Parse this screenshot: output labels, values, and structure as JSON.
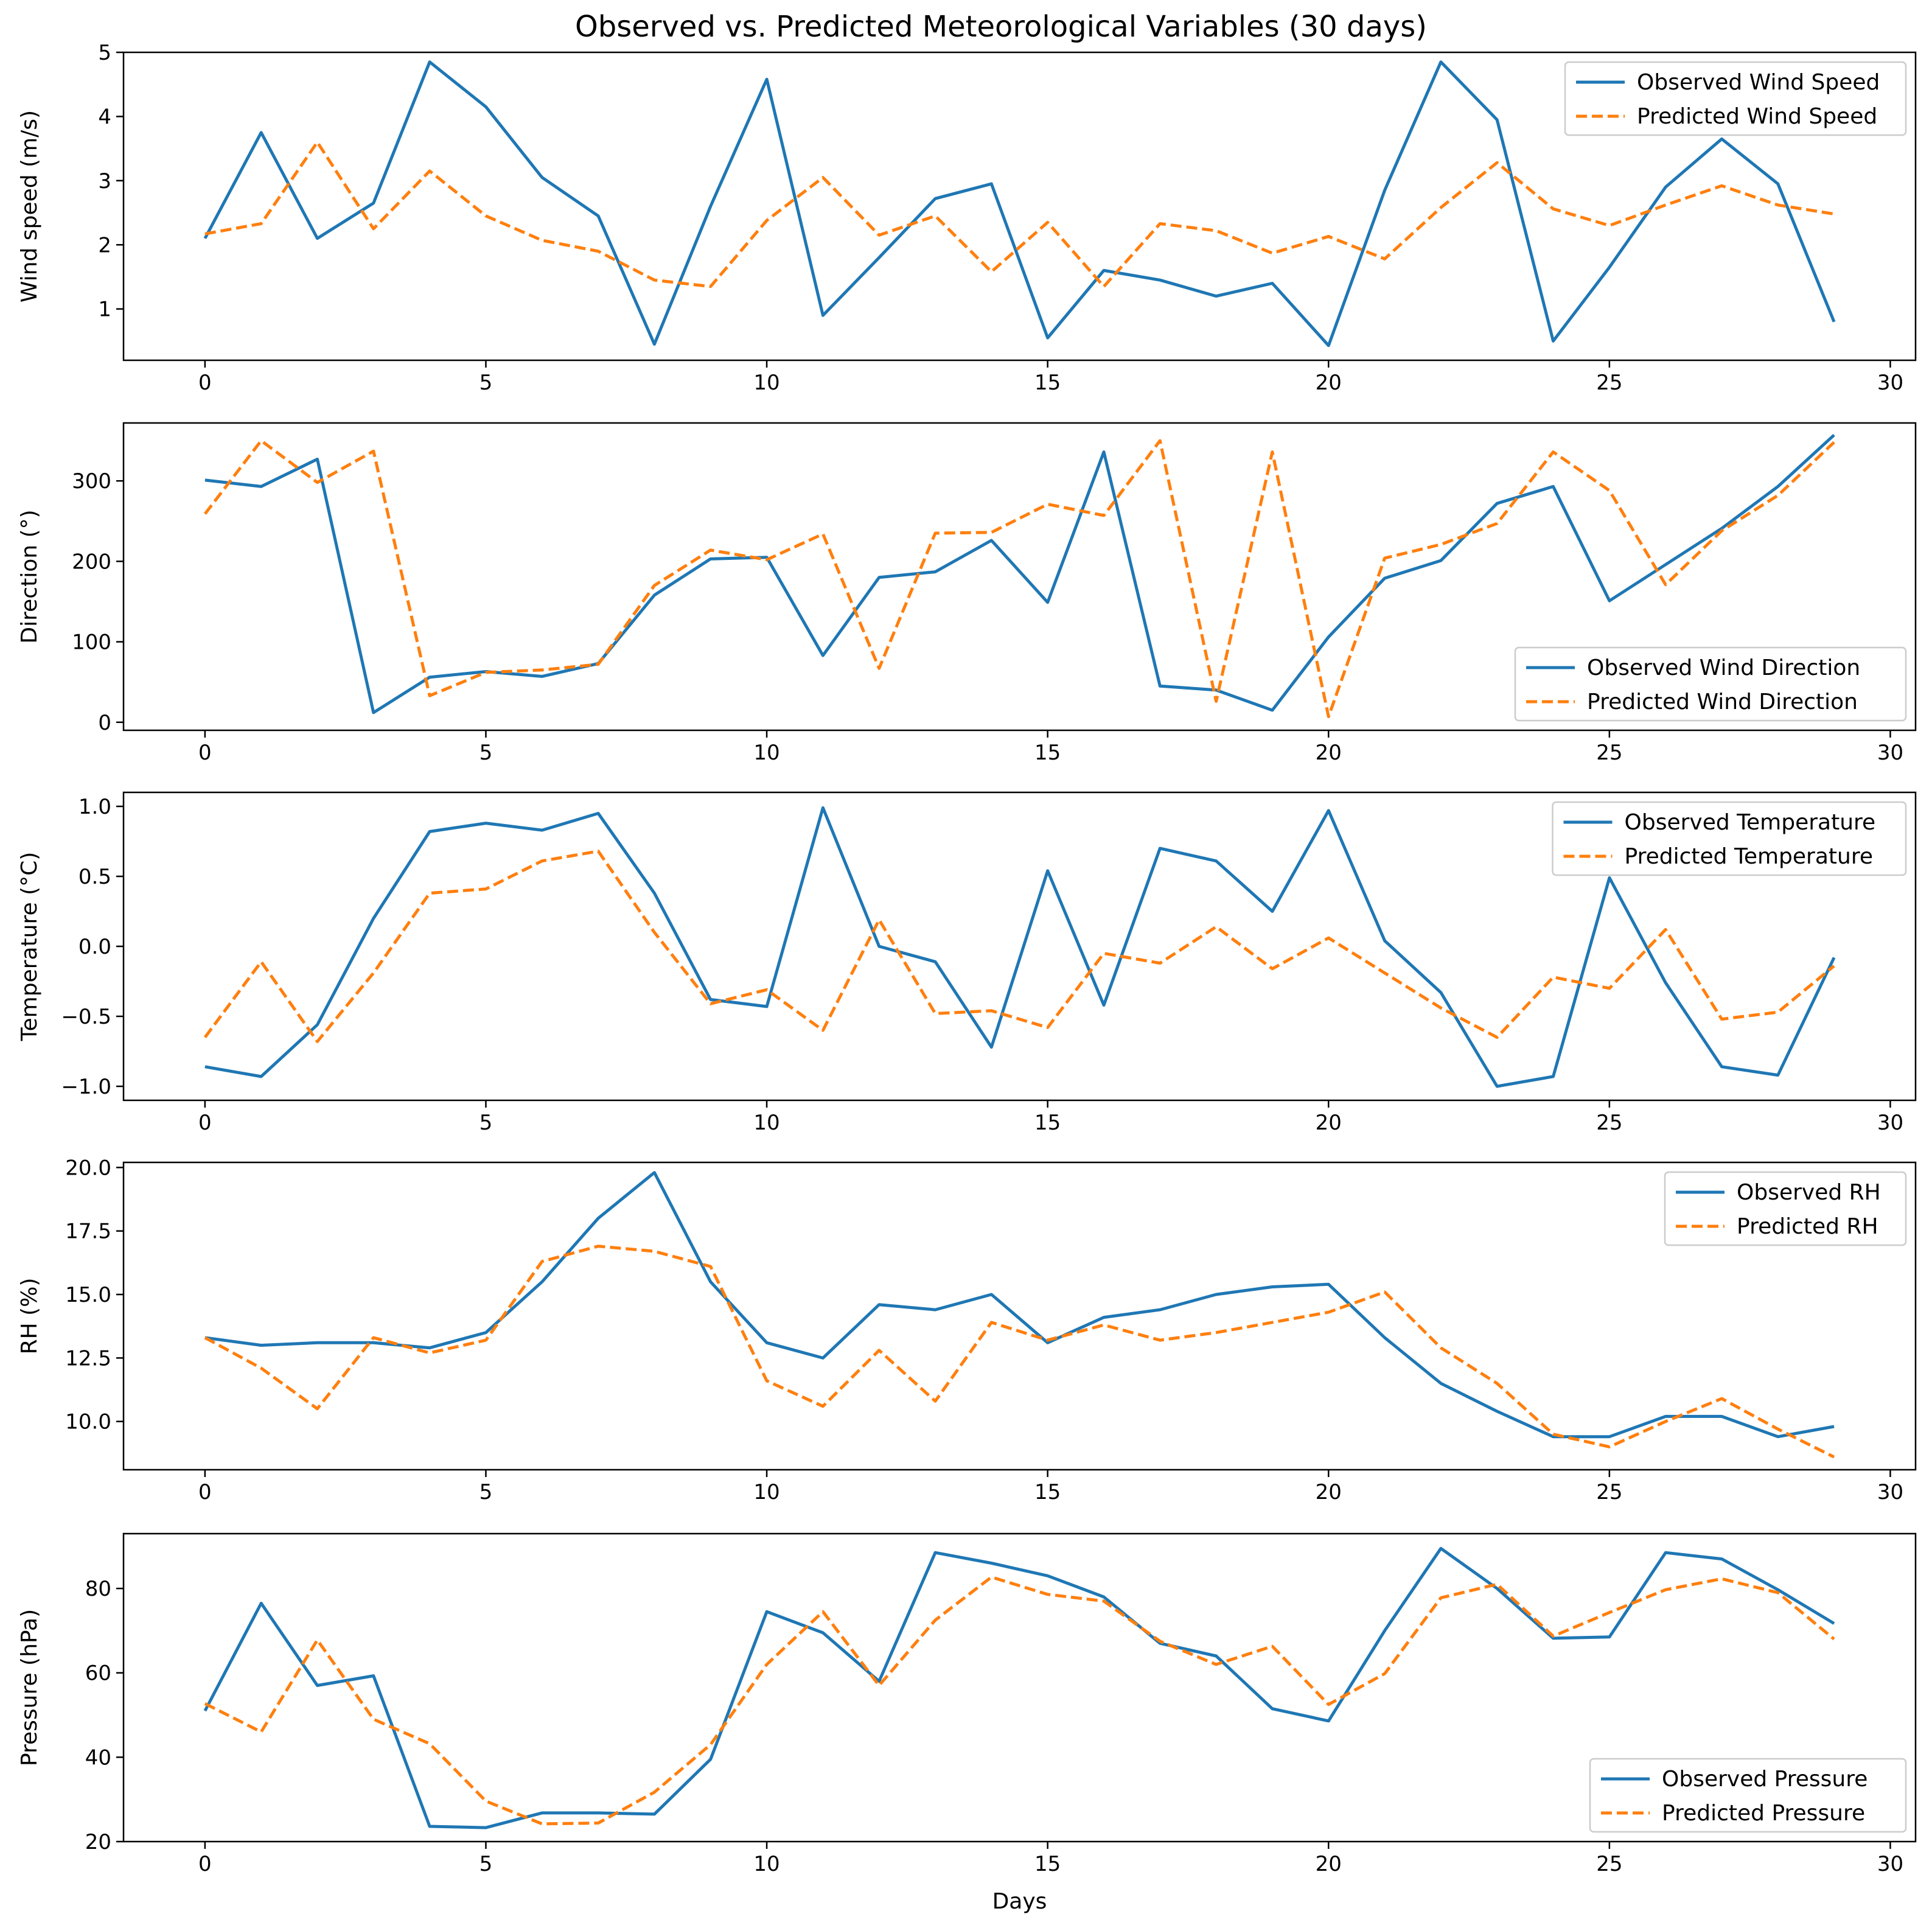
{
  "title": "Observed vs. Predicted Meteorological Variables (30 days)",
  "colors": {
    "observed": "#1f77b4",
    "predicted": "#ff7f0e"
  },
  "chart_data": [
    {
      "type": "line",
      "ylabel": "Wind speed (m/s)",
      "xlabel": "",
      "xlim": [
        -1.45,
        30.45
      ],
      "ylim": [
        0.2,
        5.0
      ],
      "xticks": [
        "0",
        "5",
        "10",
        "15",
        "20",
        "25",
        "30"
      ],
      "yticks": [
        "1",
        "2",
        "3",
        "4",
        "5"
      ],
      "legend_position": "top-right",
      "x": [
        0,
        1,
        2,
        3,
        4,
        5,
        6,
        7,
        8,
        9,
        10,
        11,
        12,
        13,
        14,
        15,
        16,
        17,
        18,
        19,
        20,
        21,
        22,
        23,
        24,
        25,
        26,
        27,
        28,
        29
      ],
      "series": [
        {
          "name": "Observed Wind Speed",
          "style": "solid",
          "values": [
            2.1,
            3.75,
            2.1,
            2.65,
            4.85,
            4.15,
            3.05,
            2.45,
            0.45,
            2.6,
            4.58,
            0.9,
            1.8,
            2.72,
            2.95,
            0.55,
            1.6,
            1.45,
            1.2,
            1.4,
            0.43,
            2.85,
            4.85,
            3.95,
            0.5,
            1.65,
            2.9,
            3.65,
            2.95,
            0.8
          ]
        },
        {
          "name": "Predicted Wind Speed",
          "style": "dashed",
          "values": [
            2.17,
            2.33,
            3.6,
            2.25,
            3.15,
            2.45,
            2.07,
            1.9,
            1.45,
            1.35,
            2.38,
            3.05,
            2.15,
            2.45,
            1.58,
            2.35,
            1.35,
            2.33,
            2.22,
            1.87,
            2.13,
            1.78,
            2.58,
            3.28,
            2.56,
            2.3,
            2.62,
            2.92,
            2.62,
            2.48
          ]
        }
      ]
    },
    {
      "type": "line",
      "ylabel": "Direction (°)",
      "xlabel": "",
      "xlim": [
        -1.45,
        30.45
      ],
      "ylim": [
        -10,
        372
      ],
      "xticks": [
        "0",
        "5",
        "10",
        "15",
        "20",
        "25",
        "30"
      ],
      "yticks": [
        "0",
        "100",
        "200",
        "300"
      ],
      "legend_position": "lower-right",
      "x": [
        0,
        1,
        2,
        3,
        4,
        5,
        6,
        7,
        8,
        9,
        10,
        11,
        12,
        13,
        14,
        15,
        16,
        17,
        18,
        19,
        20,
        21,
        22,
        23,
        24,
        25,
        26,
        27,
        28,
        29
      ],
      "series": [
        {
          "name": "Observed Wind Direction",
          "style": "solid",
          "values": [
            301,
            293,
            327,
            12,
            56,
            63,
            57,
            73,
            158,
            203,
            205,
            83,
            180,
            187,
            226,
            149,
            336,
            45,
            40,
            15,
            106,
            179,
            201,
            272,
            293,
            151,
            196,
            241,
            293,
            357
          ]
        },
        {
          "name": "Predicted Wind Direction",
          "style": "dashed",
          "values": [
            259,
            350,
            298,
            337,
            33,
            62,
            65,
            72,
            170,
            214,
            202,
            234,
            67,
            235,
            236,
            271,
            257,
            350,
            26,
            336,
            7,
            204,
            221,
            247,
            336,
            288,
            171,
            238,
            282,
            348
          ]
        }
      ]
    },
    {
      "type": "line",
      "ylabel": "Temperature (°C)",
      "xlabel": "",
      "xlim": [
        -1.45,
        30.45
      ],
      "ylim": [
        -1.1,
        1.1
      ],
      "xticks": [
        "0",
        "5",
        "10",
        "15",
        "20",
        "25",
        "30"
      ],
      "yticks": [
        "−1.0",
        "−0.5",
        "0.0",
        "0.5",
        "1.0"
      ],
      "legend_position": "top-right",
      "x": [
        0,
        1,
        2,
        3,
        4,
        5,
        6,
        7,
        8,
        9,
        10,
        11,
        12,
        13,
        14,
        15,
        16,
        17,
        18,
        19,
        20,
        21,
        22,
        23,
        24,
        25,
        26,
        27,
        28,
        29
      ],
      "series": [
        {
          "name": "Observed Temperature",
          "style": "solid",
          "values": [
            -0.86,
            -0.93,
            -0.56,
            0.2,
            0.82,
            0.88,
            0.83,
            0.95,
            0.38,
            -0.38,
            -0.43,
            0.99,
            0.0,
            -0.11,
            -0.72,
            0.54,
            -0.42,
            0.7,
            0.61,
            0.25,
            0.97,
            0.04,
            -0.33,
            -1.0,
            -0.93,
            0.49,
            -0.26,
            -0.86,
            -0.92,
            -0.08
          ]
        },
        {
          "name": "Predicted Temperature",
          "style": "dashed",
          "values": [
            -0.65,
            -0.11,
            -0.68,
            -0.19,
            0.38,
            0.41,
            0.61,
            0.68,
            0.1,
            -0.41,
            -0.31,
            -0.6,
            0.19,
            -0.48,
            -0.46,
            -0.58,
            -0.05,
            -0.12,
            0.14,
            -0.16,
            0.06,
            -0.19,
            -0.44,
            -0.65,
            -0.22,
            -0.3,
            0.12,
            -0.52,
            -0.47,
            -0.14
          ]
        }
      ]
    },
    {
      "type": "line",
      "ylabel": "RH (%)",
      "xlabel": "",
      "xlim": [
        -1.45,
        30.45
      ],
      "ylim": [
        8.1,
        20.2
      ],
      "xticks": [
        "0",
        "5",
        "10",
        "15",
        "20",
        "25",
        "30"
      ],
      "yticks": [
        "10.0",
        "12.5",
        "15.0",
        "17.5",
        "20.0"
      ],
      "legend_position": "top-right",
      "x": [
        0,
        1,
        2,
        3,
        4,
        5,
        6,
        7,
        8,
        9,
        10,
        11,
        12,
        13,
        14,
        15,
        16,
        17,
        18,
        19,
        20,
        21,
        22,
        23,
        24,
        25,
        26,
        27,
        28,
        29
      ],
      "series": [
        {
          "name": "Observed RH",
          "style": "solid",
          "values": [
            13.3,
            13.0,
            13.1,
            13.1,
            12.9,
            13.5,
            15.5,
            18.0,
            19.8,
            15.5,
            13.1,
            12.5,
            14.6,
            14.4,
            15.0,
            13.1,
            14.1,
            14.4,
            15.0,
            15.3,
            15.4,
            13.3,
            11.5,
            10.4,
            9.4,
            9.4,
            10.2,
            10.2,
            9.4,
            9.8
          ]
        },
        {
          "name": "Predicted RH",
          "style": "dashed",
          "values": [
            13.3,
            12.1,
            10.5,
            13.3,
            12.7,
            13.2,
            16.3,
            16.9,
            16.7,
            16.1,
            11.6,
            10.6,
            12.8,
            10.8,
            13.9,
            13.2,
            13.8,
            13.2,
            13.5,
            13.9,
            14.3,
            15.1,
            12.9,
            11.5,
            9.5,
            9.0,
            10.0,
            10.9,
            9.7,
            8.6
          ]
        }
      ]
    },
    {
      "type": "line",
      "ylabel": "Pressure (hPa)",
      "xlabel": "Days",
      "xlim": [
        -1.45,
        30.45
      ],
      "ylim": [
        20,
        93
      ],
      "xticks": [
        "0",
        "5",
        "10",
        "15",
        "20",
        "25",
        "30"
      ],
      "yticks": [
        "20",
        "40",
        "60",
        "80"
      ],
      "legend_position": "lower-right",
      "x": [
        0,
        1,
        2,
        3,
        4,
        5,
        6,
        7,
        8,
        9,
        10,
        11,
        12,
        13,
        14,
        15,
        16,
        17,
        18,
        19,
        20,
        21,
        22,
        23,
        24,
        25,
        26,
        27,
        28,
        29
      ],
      "series": [
        {
          "name": "Observed Pressure",
          "style": "solid",
          "values": [
            51,
            76.5,
            57,
            59.3,
            23.6,
            23.3,
            26.8,
            26.8,
            26.5,
            39.5,
            74.5,
            69.5,
            58,
            88.5,
            86,
            83,
            78,
            67,
            64,
            51.5,
            48.6,
            70,
            89.5,
            80,
            68.2,
            68.5,
            88.5,
            87,
            79.7,
            71.7
          ]
        },
        {
          "name": "Predicted Pressure",
          "style": "dashed",
          "values": [
            52.7,
            46,
            67.8,
            49,
            43.2,
            29.6,
            24.2,
            24.4,
            31.7,
            43,
            62,
            74.5,
            57,
            72.5,
            82.7,
            78.6,
            77,
            67.5,
            62,
            66.3,
            52.5,
            59.8,
            77.8,
            81,
            68.7,
            74.3,
            79.7,
            82.3,
            79,
            68
          ]
        }
      ]
    }
  ]
}
